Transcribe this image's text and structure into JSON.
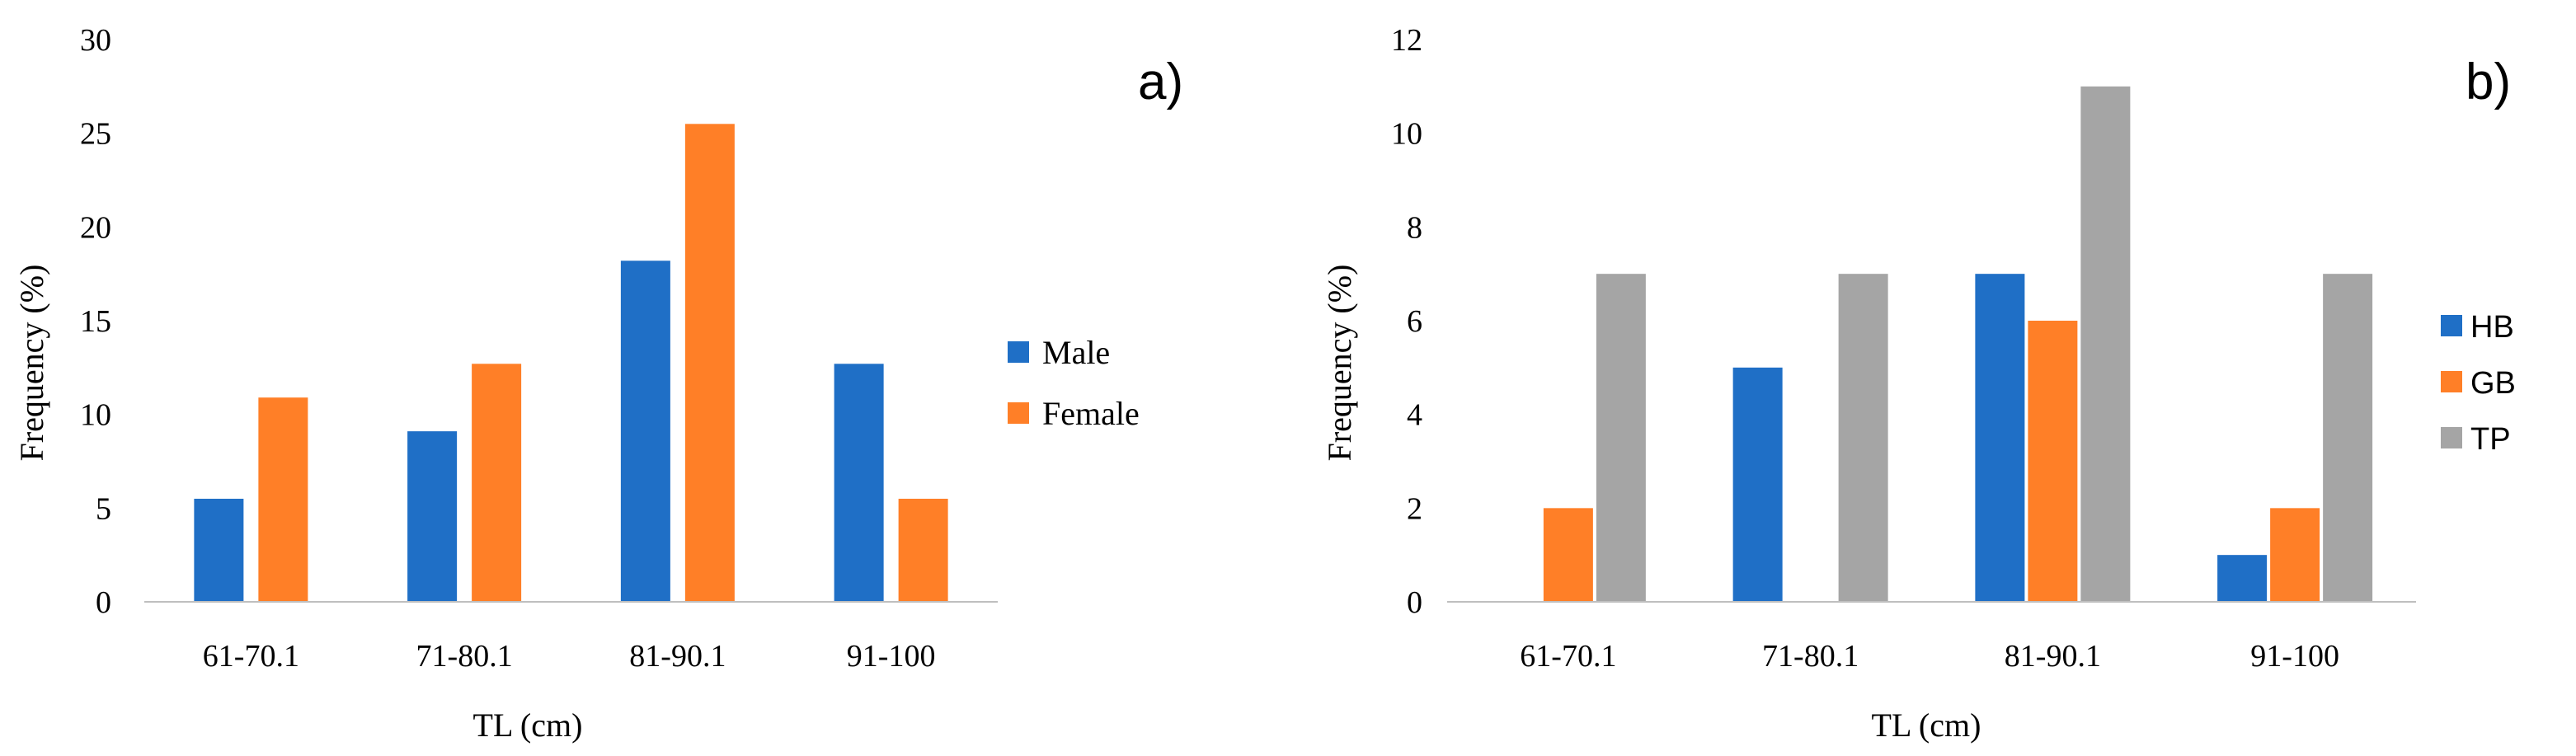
{
  "chart_data": [
    {
      "type": "bar",
      "panel_label": "a)",
      "categories": [
        "61-70.1",
        "71-80.1",
        "81-90.1",
        "91-100"
      ],
      "series": [
        {
          "name": "Male",
          "color": "#1f6fc6",
          "values": [
            5.5,
            9.1,
            18.2,
            12.7
          ]
        },
        {
          "name": "Female",
          "color": "#ff7f27",
          "values": [
            10.9,
            12.7,
            25.5,
            5.5
          ]
        }
      ],
      "xlabel": "TL (cm)",
      "ylabel": "Frequency (%)",
      "ylim": [
        0,
        30
      ],
      "yticks": [
        "0",
        "5",
        "10",
        "15",
        "20",
        "25",
        "30"
      ],
      "grid": false,
      "legend_position": "right"
    },
    {
      "type": "bar",
      "panel_label": "b)",
      "categories": [
        "61-70.1",
        "71-80.1",
        "81-90.1",
        "91-100"
      ],
      "series": [
        {
          "name": "HB",
          "color": "#1f6fc6",
          "values": [
            0,
            5,
            7,
            1
          ]
        },
        {
          "name": "GB",
          "color": "#ff7f27",
          "values": [
            2,
            0,
            6,
            2
          ]
        },
        {
          "name": "TP",
          "color": "#a5a5a5",
          "values": [
            7,
            7,
            11,
            7
          ]
        }
      ],
      "xlabel": "TL (cm)",
      "ylabel": "Frequency (%)",
      "ylim": [
        0,
        12
      ],
      "yticks": [
        "0",
        "2",
        "4",
        "6",
        "8",
        "10",
        "12"
      ],
      "grid": false,
      "legend_position": "right"
    }
  ]
}
